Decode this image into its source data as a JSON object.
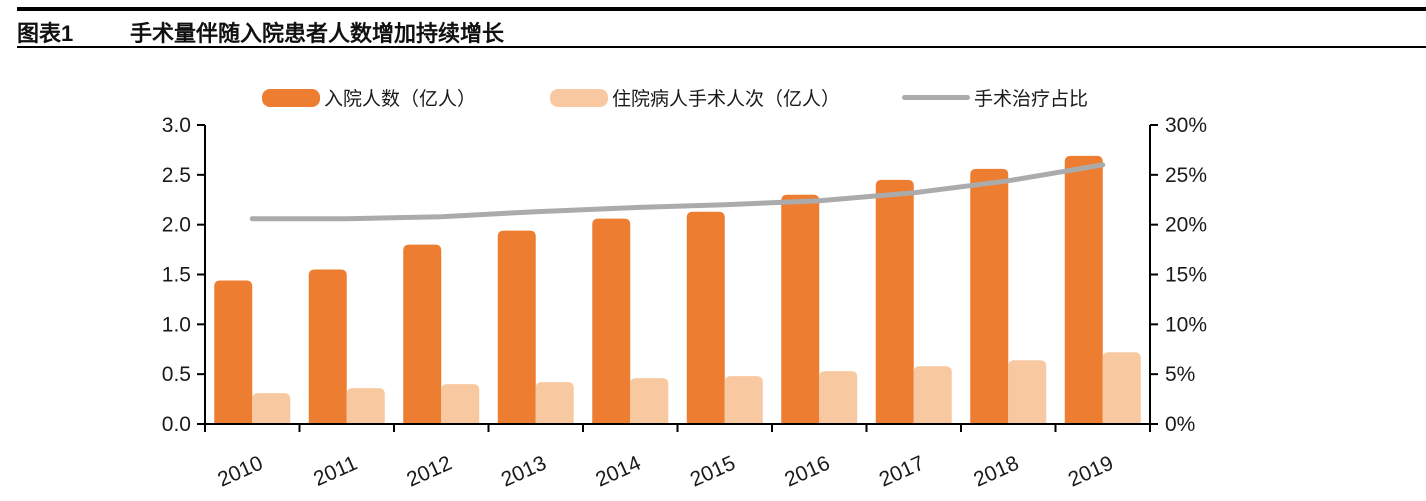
{
  "header": {
    "figure_label": "图表1",
    "title": "手术量伴随入院患者人数增加持续增长"
  },
  "chart_data": {
    "type": "bar",
    "subtype": "grouped-bars-with-line",
    "categories": [
      "2010",
      "2011",
      "2012",
      "2013",
      "2014",
      "2015",
      "2016",
      "2017",
      "2018",
      "2019"
    ],
    "series": [
      {
        "name": "入院人数（亿人）",
        "type": "bar",
        "axis": "left",
        "color": "#ED7D31",
        "values": [
          1.44,
          1.55,
          1.8,
          1.94,
          2.06,
          2.13,
          2.3,
          2.45,
          2.56,
          2.69
        ]
      },
      {
        "name": "住院病人手术人次（亿人）",
        "type": "bar",
        "axis": "left",
        "color": "#F8C9A0",
        "values": [
          0.31,
          0.36,
          0.4,
          0.42,
          0.46,
          0.48,
          0.53,
          0.58,
          0.64,
          0.72
        ]
      },
      {
        "name": "手术治疗占比",
        "type": "line",
        "axis": "right",
        "color": "#ABABAB",
        "values": [
          20.6,
          20.6,
          20.8,
          21.3,
          21.7,
          22.0,
          22.4,
          23.2,
          24.4,
          26.0
        ]
      }
    ],
    "left_axis": {
      "min": 0.0,
      "max": 3.0,
      "step": 0.5,
      "tick_labels": [
        "0.0",
        "0.5",
        "1.0",
        "1.5",
        "2.0",
        "2.5",
        "3.0"
      ]
    },
    "right_axis": {
      "min": 0,
      "max": 30,
      "step": 5,
      "tick_labels": [
        "0%",
        "5%",
        "10%",
        "15%",
        "20%",
        "25%",
        "30%"
      ]
    },
    "legend_position": "top",
    "grid": "off",
    "axis_color": "#000000",
    "text_color": "#1a1a1a"
  }
}
